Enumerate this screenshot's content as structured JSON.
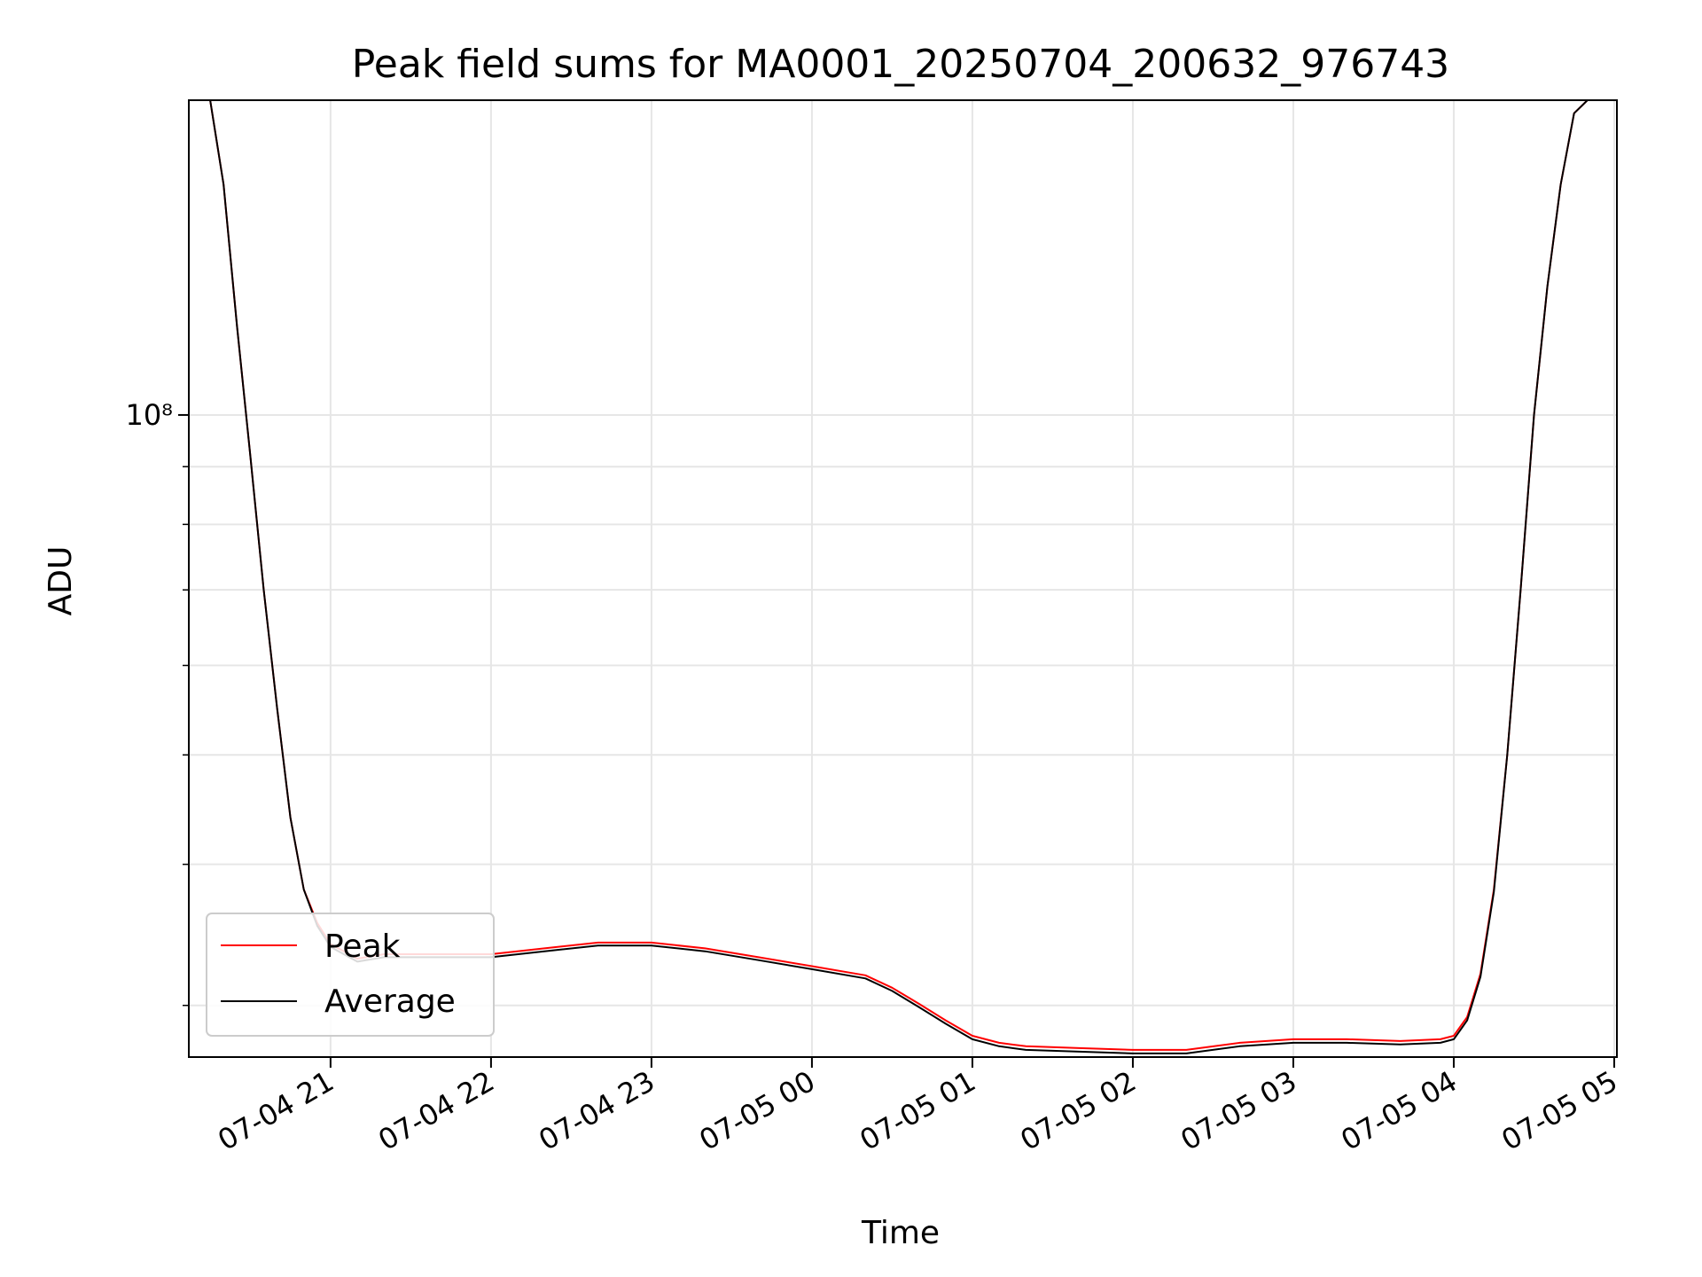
{
  "chart_data": {
    "type": "line",
    "title": "Peak field sums for MA0001_20250704_200632_976743",
    "xlabel": "Time",
    "ylabel": "ADU",
    "yscale": "log",
    "ylim": [
      27000000,
      190000000
    ],
    "xlim": [
      "2025-07-04T20:07:00",
      "2025-07-05T05:01:00"
    ],
    "grid": true,
    "legend_position": "lower-left",
    "y_major_tick_labels": [
      {
        "value": 100000000,
        "label": "10⁸"
      }
    ],
    "y_minor_ticks": [
      30000000,
      40000000,
      50000000,
      60000000,
      70000000,
      80000000,
      90000000,
      200000000
    ],
    "x_ticks": [
      {
        "t": "2025-07-04T21:00:00",
        "label": "07-04 21"
      },
      {
        "t": "2025-07-04T22:00:00",
        "label": "07-04 22"
      },
      {
        "t": "2025-07-04T23:00:00",
        "label": "07-04 23"
      },
      {
        "t": "2025-07-05T00:00:00",
        "label": "07-05 00"
      },
      {
        "t": "2025-07-05T01:00:00",
        "label": "07-05 01"
      },
      {
        "t": "2025-07-05T02:00:00",
        "label": "07-05 02"
      },
      {
        "t": "2025-07-05T03:00:00",
        "label": "07-05 03"
      },
      {
        "t": "2025-07-05T04:00:00",
        "label": "07-05 04"
      },
      {
        "t": "2025-07-05T05:00:00",
        "label": "07-05 05"
      }
    ],
    "series": [
      {
        "name": "Peak",
        "color": "#ff0000",
        "x": [
          "2025-07-04T20:15:00",
          "2025-07-04T20:20:00",
          "2025-07-04T20:25:00",
          "2025-07-04T20:30:00",
          "2025-07-04T20:35:00",
          "2025-07-04T20:40:00",
          "2025-07-04T20:45:00",
          "2025-07-04T20:50:00",
          "2025-07-04T20:55:00",
          "2025-07-04T21:00:00",
          "2025-07-04T21:10:00",
          "2025-07-04T21:20:00",
          "2025-07-04T21:40:00",
          "2025-07-04T22:00:00",
          "2025-07-04T22:20:00",
          "2025-07-04T22:40:00",
          "2025-07-04T23:00:00",
          "2025-07-04T23:20:00",
          "2025-07-04T23:40:00",
          "2025-07-05T00:00:00",
          "2025-07-05T00:20:00",
          "2025-07-05T00:30:00",
          "2025-07-05T00:40:00",
          "2025-07-05T00:50:00",
          "2025-07-05T01:00:00",
          "2025-07-05T01:10:00",
          "2025-07-05T01:20:00",
          "2025-07-05T01:40:00",
          "2025-07-05T02:00:00",
          "2025-07-05T02:20:00",
          "2025-07-05T02:40:00",
          "2025-07-05T03:00:00",
          "2025-07-05T03:20:00",
          "2025-07-05T03:40:00",
          "2025-07-05T03:55:00",
          "2025-07-05T04:00:00",
          "2025-07-05T04:05:00",
          "2025-07-05T04:10:00",
          "2025-07-05T04:15:00",
          "2025-07-05T04:20:00",
          "2025-07-05T04:25:00",
          "2025-07-05T04:30:00",
          "2025-07-05T04:35:00",
          "2025-07-05T04:40:00",
          "2025-07-05T04:45:00",
          "2025-07-05T04:50:00",
          "2025-07-05T05:01:00"
        ],
        "values": [
          190000000,
          160000000,
          120000000,
          92000000,
          70000000,
          55000000,
          44000000,
          38000000,
          35500000,
          34000000,
          33000000,
          33300000,
          33300000,
          33300000,
          33700000,
          34100000,
          34100000,
          33700000,
          33100000,
          32500000,
          31900000,
          31100000,
          30100000,
          29100000,
          28200000,
          27800000,
          27600000,
          27500000,
          27400000,
          27400000,
          27800000,
          28000000,
          28000000,
          27900000,
          28000000,
          28200000,
          29300000,
          32000000,
          38000000,
          50000000,
          70000000,
          100000000,
          130000000,
          160000000,
          185000000,
          190000000,
          190000000
        ]
      },
      {
        "name": "Average",
        "color": "#000000",
        "x": [
          "2025-07-04T20:15:00",
          "2025-07-04T20:20:00",
          "2025-07-04T20:25:00",
          "2025-07-04T20:30:00",
          "2025-07-04T20:35:00",
          "2025-07-04T20:40:00",
          "2025-07-04T20:45:00",
          "2025-07-04T20:50:00",
          "2025-07-04T20:55:00",
          "2025-07-04T21:00:00",
          "2025-07-04T21:10:00",
          "2025-07-04T21:20:00",
          "2025-07-04T21:40:00",
          "2025-07-04T22:00:00",
          "2025-07-04T22:20:00",
          "2025-07-04T22:40:00",
          "2025-07-04T23:00:00",
          "2025-07-04T23:20:00",
          "2025-07-04T23:40:00",
          "2025-07-05T00:00:00",
          "2025-07-05T00:20:00",
          "2025-07-05T00:30:00",
          "2025-07-05T00:40:00",
          "2025-07-05T00:50:00",
          "2025-07-05T01:00:00",
          "2025-07-05T01:10:00",
          "2025-07-05T01:20:00",
          "2025-07-05T01:40:00",
          "2025-07-05T02:00:00",
          "2025-07-05T02:20:00",
          "2025-07-05T02:40:00",
          "2025-07-05T03:00:00",
          "2025-07-05T03:20:00",
          "2025-07-05T03:40:00",
          "2025-07-05T03:55:00",
          "2025-07-05T04:00:00",
          "2025-07-05T04:05:00",
          "2025-07-05T04:10:00",
          "2025-07-05T04:15:00",
          "2025-07-05T04:20:00",
          "2025-07-05T04:25:00",
          "2025-07-05T04:30:00",
          "2025-07-05T04:35:00",
          "2025-07-05T04:40:00",
          "2025-07-05T04:45:00",
          "2025-07-05T04:50:00",
          "2025-07-05T05:01:00"
        ],
        "values": [
          190000000,
          160000000,
          120000000,
          92000000,
          70000000,
          55000000,
          44000000,
          38000000,
          35300000,
          33800000,
          32800000,
          33100000,
          33100000,
          33100000,
          33500000,
          33900000,
          33900000,
          33500000,
          32900000,
          32300000,
          31700000,
          30900000,
          29900000,
          28900000,
          28000000,
          27600000,
          27400000,
          27300000,
          27200000,
          27200000,
          27600000,
          27800000,
          27800000,
          27700000,
          27800000,
          28000000,
          29100000,
          31800000,
          37800000,
          50000000,
          70000000,
          100000000,
          130000000,
          160000000,
          185000000,
          190000000,
          190000000
        ]
      }
    ]
  }
}
